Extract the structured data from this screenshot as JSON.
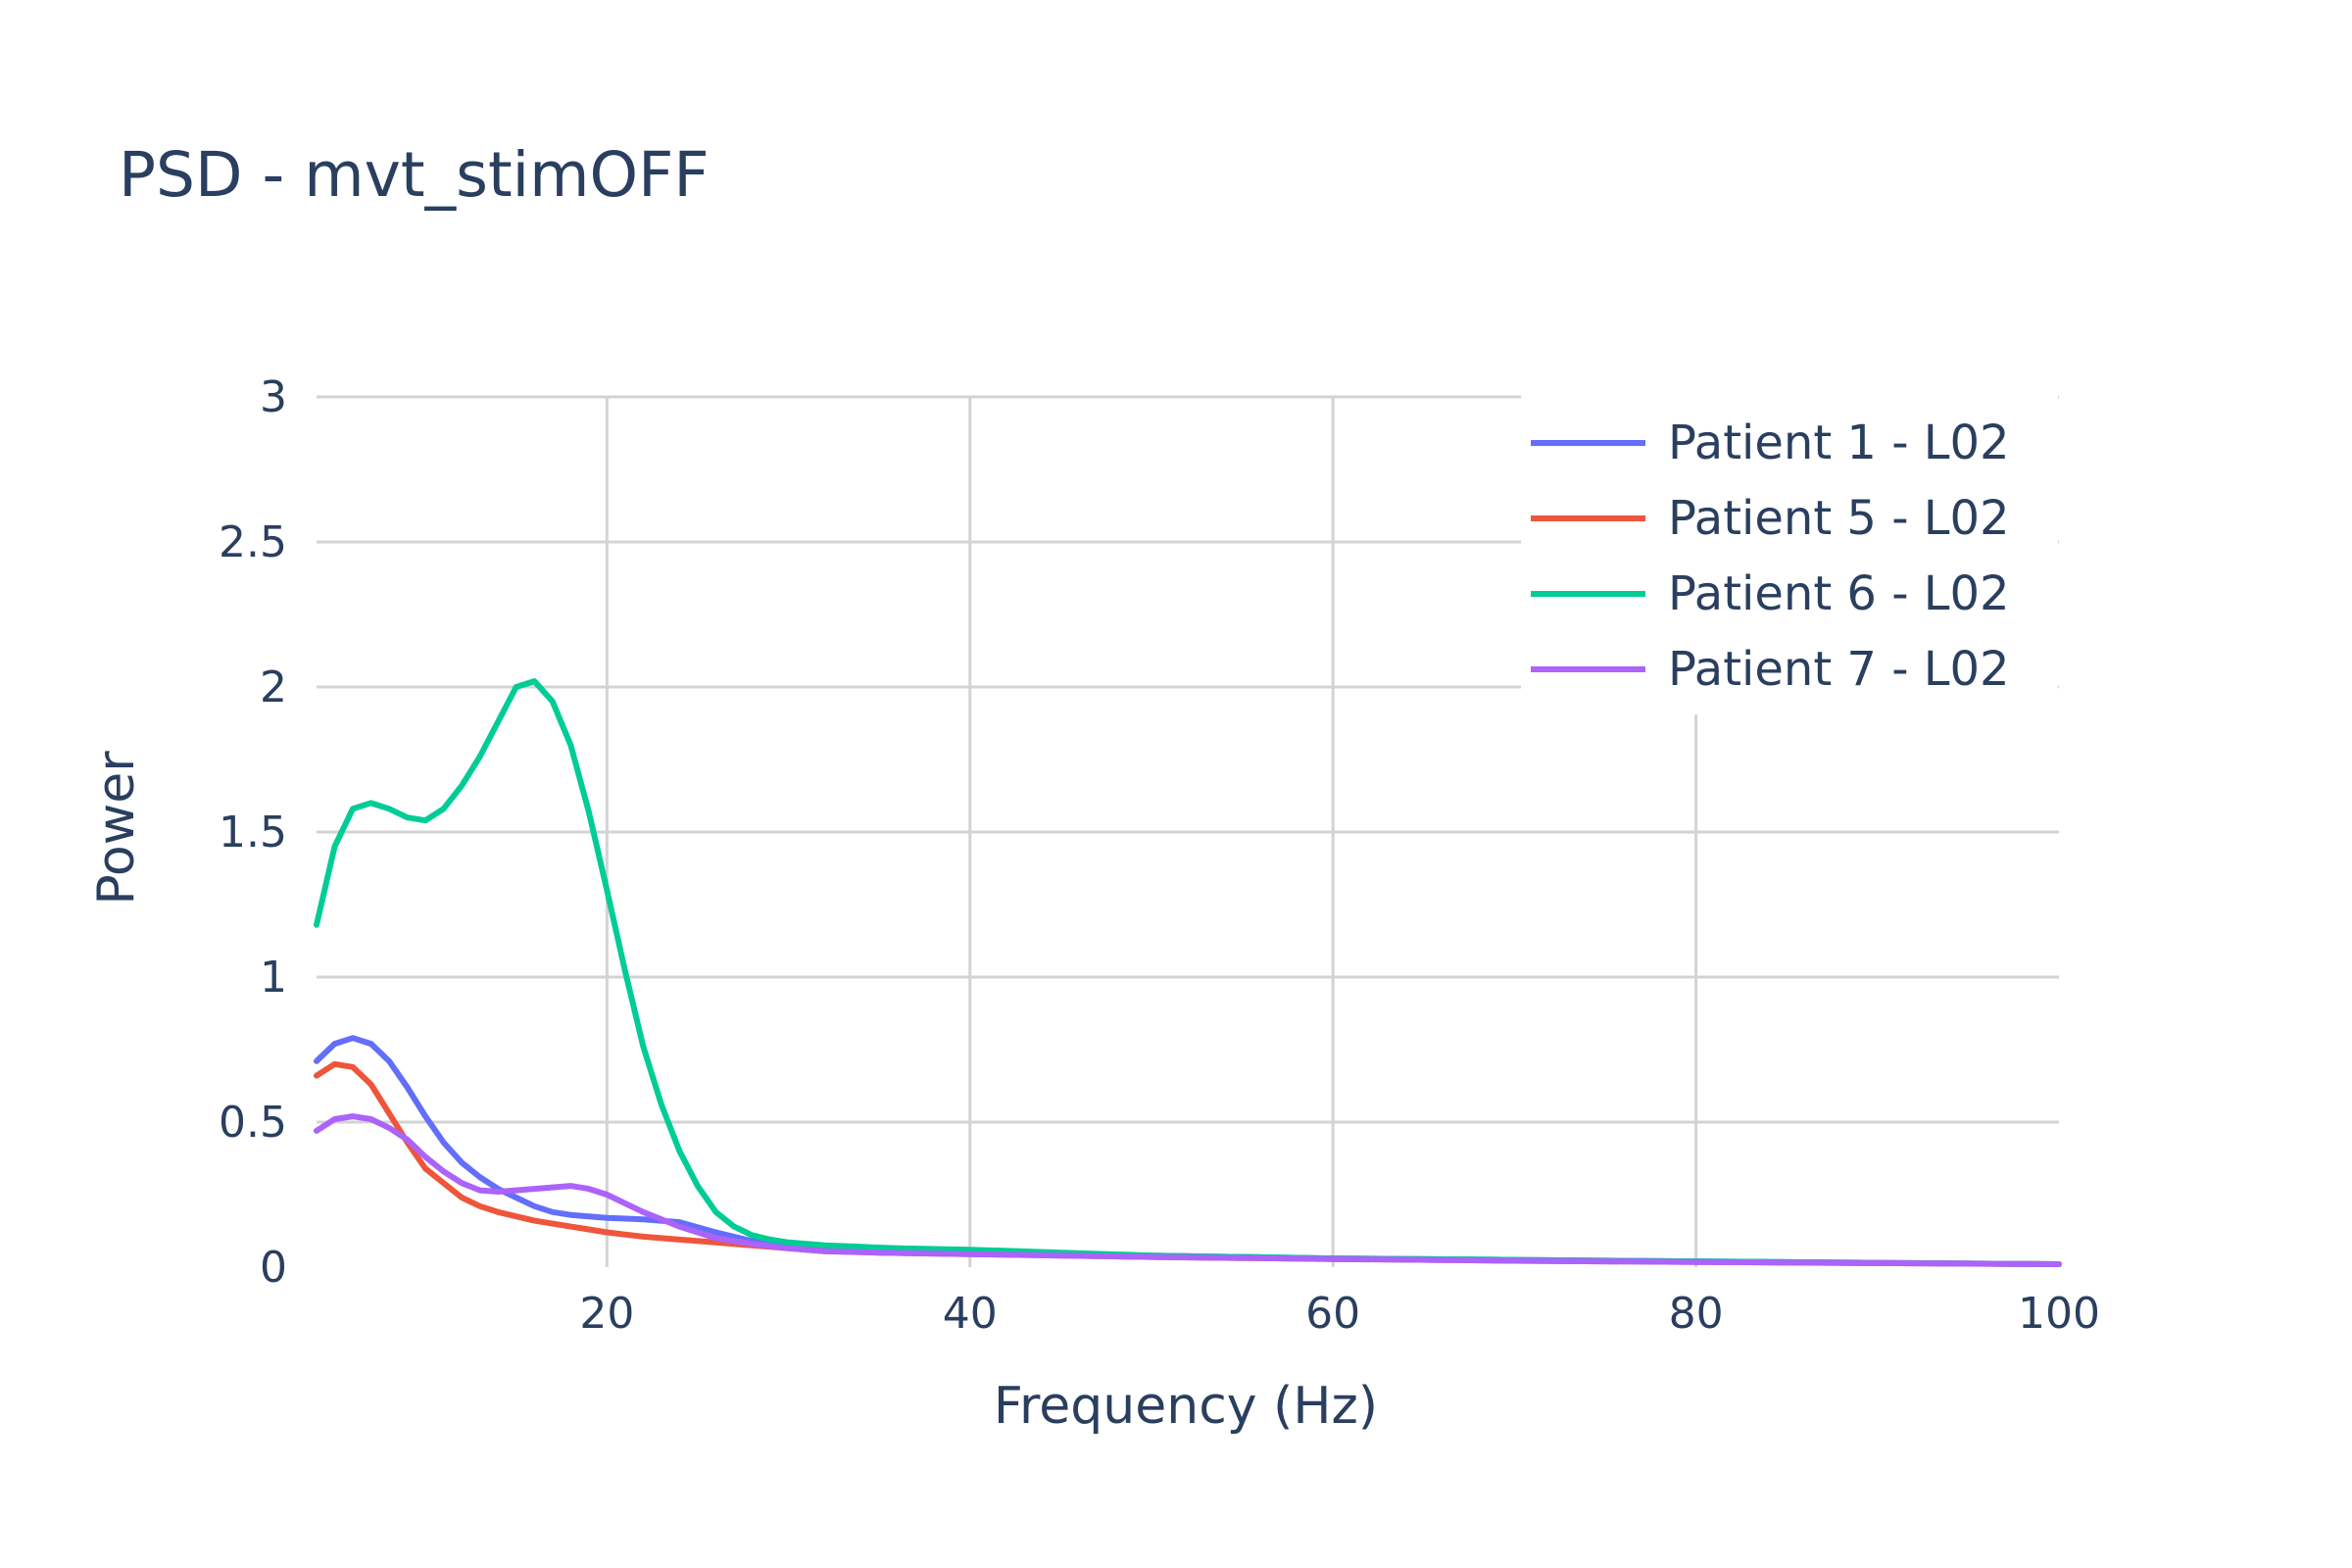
{
  "chart_data": {
    "type": "line",
    "title": "PSD - mvt_stimOFF",
    "xlabel": "Frequency (Hz)",
    "ylabel": "Power",
    "xlim": [
      4,
      100
    ],
    "ylim": [
      0,
      3
    ],
    "xticks": [
      20,
      40,
      60,
      80,
      100
    ],
    "xtick_labels": [
      "20",
      "40",
      "60",
      "80",
      "100"
    ],
    "yticks": [
      0,
      0.5,
      1,
      1.5,
      2,
      2.5,
      3
    ],
    "ytick_labels": [
      "0",
      "0.5",
      "1",
      "1.5",
      "2",
      "2.5",
      "3"
    ],
    "grid": true,
    "legend_position": "top-right",
    "series": [
      {
        "name": "Patient 1 - L02",
        "color": "#636efa",
        "x": [
          4,
          5,
          6,
          7,
          8,
          9,
          10,
          11,
          12,
          13,
          14,
          15,
          16,
          17,
          18,
          19,
          20,
          22,
          24,
          26,
          28,
          30,
          32,
          35,
          40,
          50,
          60,
          70,
          80,
          90,
          100
        ],
        "y": [
          0.71,
          0.77,
          0.79,
          0.77,
          0.71,
          0.62,
          0.52,
          0.43,
          0.36,
          0.31,
          0.27,
          0.24,
          0.21,
          0.19,
          0.18,
          0.175,
          0.17,
          0.165,
          0.155,
          0.12,
          0.09,
          0.075,
          0.06,
          0.055,
          0.05,
          0.04,
          0.03,
          0.025,
          0.02,
          0.015,
          0.01
        ]
      },
      {
        "name": "Patient 5 - L02",
        "color": "#ef553b",
        "x": [
          4,
          5,
          6,
          7,
          8,
          9,
          10,
          11,
          12,
          13,
          14,
          15,
          16,
          17,
          18,
          19,
          20,
          22,
          24,
          26,
          28,
          30,
          32,
          35,
          40,
          50,
          60,
          70,
          80,
          90,
          100
        ],
        "y": [
          0.66,
          0.7,
          0.69,
          0.63,
          0.53,
          0.43,
          0.34,
          0.29,
          0.24,
          0.21,
          0.19,
          0.175,
          0.16,
          0.15,
          0.14,
          0.13,
          0.12,
          0.105,
          0.095,
          0.085,
          0.075,
          0.065,
          0.055,
          0.05,
          0.045,
          0.035,
          0.028,
          0.022,
          0.018,
          0.014,
          0.01
        ]
      },
      {
        "name": "Patient 6 - L02",
        "color": "#00cc96",
        "x": [
          4,
          5,
          6,
          7,
          8,
          9,
          10,
          11,
          12,
          13,
          14,
          15,
          16,
          17,
          18,
          19,
          20,
          21,
          22,
          23,
          24,
          25,
          26,
          27,
          28,
          29,
          30,
          31,
          32,
          34,
          36,
          40,
          50,
          60,
          70,
          80,
          90,
          100
        ],
        "y": [
          1.18,
          1.45,
          1.58,
          1.6,
          1.58,
          1.55,
          1.54,
          1.58,
          1.66,
          1.76,
          1.88,
          2.0,
          2.02,
          1.95,
          1.8,
          1.57,
          1.3,
          1.02,
          0.76,
          0.56,
          0.4,
          0.28,
          0.19,
          0.14,
          0.11,
          0.095,
          0.085,
          0.08,
          0.075,
          0.07,
          0.065,
          0.06,
          0.04,
          0.03,
          0.025,
          0.02,
          0.015,
          0.01
        ]
      },
      {
        "name": "Patient 7 - L02",
        "color": "#ab63fa",
        "x": [
          4,
          5,
          6,
          7,
          8,
          9,
          10,
          11,
          12,
          13,
          14,
          15,
          16,
          17,
          18,
          19,
          20,
          22,
          24,
          26,
          28,
          30,
          32,
          35,
          40,
          50,
          60,
          70,
          80,
          90,
          100
        ],
        "y": [
          0.47,
          0.51,
          0.52,
          0.51,
          0.48,
          0.44,
          0.38,
          0.33,
          0.29,
          0.265,
          0.26,
          0.265,
          0.27,
          0.275,
          0.28,
          0.27,
          0.25,
          0.19,
          0.14,
          0.1,
          0.08,
          0.065,
          0.055,
          0.05,
          0.045,
          0.035,
          0.028,
          0.022,
          0.018,
          0.014,
          0.01
        ]
      }
    ]
  }
}
